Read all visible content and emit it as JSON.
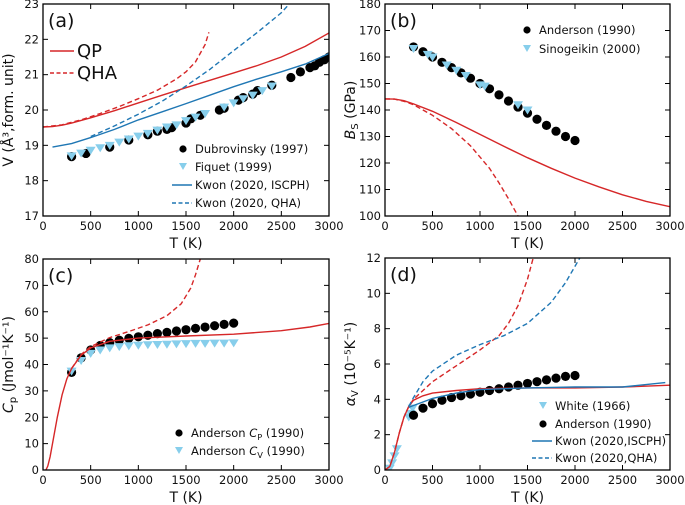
{
  "colors": {
    "qp_red": "#d62728",
    "kwon_blue": "#1f77b4",
    "exp_black": "#000000",
    "exp_lightblue": "#87ceeb"
  },
  "chart_data": [
    {
      "id": "a",
      "type": "line",
      "panel_label": "(a)",
      "title": "",
      "xlabel": "T (K)",
      "ylabel": "V (Å³,form. unit)",
      "xlim": [
        0,
        3000
      ],
      "ylim": [
        17,
        23
      ],
      "xticks": [
        0,
        500,
        1000,
        1500,
        2000,
        2500,
        3000
      ],
      "yticks": [
        17,
        18,
        19,
        20,
        21,
        22,
        23
      ],
      "xtick_labels": [
        "0",
        "500",
        "1000",
        "1500",
        "2000",
        "2500",
        "3000"
      ],
      "ytick_labels": [
        "17",
        "18",
        "19",
        "20",
        "21",
        "22",
        "23"
      ],
      "legend_main": {
        "placement": "top-left",
        "entries": [
          "QP",
          "QHA"
        ]
      },
      "legend": {
        "placement": "bottom-right",
        "entries": [
          "Dubrovinsky (1997)",
          "Fiquet (1999)",
          "Kwon (2020, ISCPH)",
          "Kwon (2020, QHA)"
        ]
      },
      "series": [
        {
          "name": "QP",
          "style": "solid",
          "color": "qp_red",
          "x": [
            0,
            100,
            200,
            300,
            500,
            750,
            1000,
            1250,
            1500,
            1750,
            2000,
            2250,
            2500,
            2750,
            3000
          ],
          "y": [
            19.52,
            19.53,
            19.57,
            19.63,
            19.78,
            19.98,
            20.2,
            20.42,
            20.63,
            20.84,
            21.05,
            21.26,
            21.5,
            21.8,
            22.18
          ]
        },
        {
          "name": "QHA",
          "style": "dashed",
          "color": "qp_red",
          "x": [
            0,
            200,
            400,
            600,
            800,
            1000,
            1200,
            1400,
            1500,
            1600,
            1700,
            1740
          ],
          "y": [
            19.52,
            19.58,
            19.72,
            19.9,
            20.1,
            20.32,
            20.56,
            20.88,
            21.08,
            21.36,
            21.85,
            22.2
          ]
        },
        {
          "name": "Kwon (2020, ISCPH)",
          "style": "solid",
          "color": "kwon_blue",
          "x": [
            100,
            300,
            500,
            750,
            1000,
            1250,
            1500,
            1750,
            2000,
            2250,
            2500,
            2750,
            3000
          ],
          "y": [
            18.95,
            19.05,
            19.22,
            19.45,
            19.72,
            19.95,
            20.18,
            20.42,
            20.66,
            20.88,
            21.08,
            21.3,
            21.6
          ]
        },
        {
          "name": "Kwon (2020, QHA)",
          "style": "dashed",
          "color": "kwon_blue",
          "x": [
            500,
            750,
            1000,
            1250,
            1500,
            1750,
            2000,
            2250,
            2500,
            2750,
            2800
          ],
          "y": [
            19.25,
            19.55,
            19.88,
            20.25,
            20.68,
            21.15,
            21.68,
            22.2,
            22.75,
            23.5,
            23.7
          ]
        },
        {
          "name": "Dubrovinsky (1997)",
          "style": "marker-circle",
          "color": "exp_black",
          "x": [
            300,
            450,
            700,
            900,
            1100,
            1200,
            1300,
            1350,
            1500,
            1550,
            1650,
            1850,
            1900,
            2050,
            2100,
            2200,
            2250,
            2400,
            2600,
            2700,
            2800,
            2850,
            2900,
            2950,
            3000
          ],
          "y": [
            18.68,
            18.77,
            18.95,
            19.15,
            19.3,
            19.4,
            19.45,
            19.5,
            19.63,
            19.75,
            19.85,
            20.0,
            20.05,
            20.28,
            20.35,
            20.45,
            20.55,
            20.7,
            20.92,
            21.08,
            21.2,
            21.25,
            21.35,
            21.42,
            21.5
          ]
        },
        {
          "name": "Fiquet (1999)",
          "style": "marker-triangle",
          "color": "exp_lightblue",
          "x": [
            300,
            400,
            500,
            600,
            700,
            800,
            900,
            1000,
            1100,
            1200,
            1300,
            1400,
            1500,
            1600,
            1700,
            1900,
            2000,
            2100,
            2200,
            2300,
            2400
          ],
          "y": [
            18.7,
            18.78,
            18.86,
            18.93,
            19.0,
            19.09,
            19.18,
            19.26,
            19.34,
            19.43,
            19.52,
            19.58,
            19.7,
            19.8,
            19.9,
            20.08,
            20.2,
            20.32,
            20.42,
            20.55,
            20.68
          ]
        }
      ]
    },
    {
      "id": "b",
      "type": "line",
      "panel_label": "(b)",
      "title": "",
      "xlabel": "T (K)",
      "ylabel": "B_S (GPa)",
      "xlim": [
        0,
        3000
      ],
      "ylim": [
        100,
        180
      ],
      "xticks": [
        0,
        500,
        1000,
        1500,
        2000,
        2500,
        3000
      ],
      "yticks": [
        100,
        110,
        120,
        130,
        140,
        150,
        160,
        170,
        180
      ],
      "xtick_labels": [
        "0",
        "500",
        "1000",
        "1500",
        "2000",
        "2500",
        "3000"
      ],
      "ytick_labels": [
        "100",
        "110",
        "120",
        "130",
        "140",
        "150",
        "160",
        "170",
        "180"
      ],
      "legend": {
        "placement": "top-right",
        "entries": [
          "Anderson (1990)",
          "Sinogeikin (2000)"
        ]
      },
      "series": [
        {
          "name": "QP",
          "style": "solid",
          "color": "qp_red",
          "x": [
            0,
            100,
            200,
            300,
            500,
            750,
            1000,
            1250,
            1500,
            1750,
            2000,
            2250,
            2500,
            2750,
            3000
          ],
          "y": [
            144.2,
            144.1,
            143.5,
            142.3,
            139.5,
            135.3,
            130.8,
            126.3,
            122.0,
            118.0,
            114.3,
            111.0,
            108.0,
            105.5,
            103.5
          ]
        },
        {
          "name": "QHA",
          "style": "dashed",
          "color": "qp_red",
          "x": [
            0,
            100,
            200,
            300,
            500,
            700,
            900,
            1100,
            1200,
            1300,
            1400
          ],
          "y": [
            144.2,
            144.1,
            143.3,
            142.0,
            138.0,
            133.0,
            126.5,
            118.0,
            112.5,
            106.5,
            100
          ]
        },
        {
          "name": "Anderson (1990)",
          "style": "marker-circle",
          "color": "exp_black",
          "x": [
            300,
            400,
            500,
            600,
            700,
            800,
            900,
            1000,
            1100,
            1200,
            1300,
            1400,
            1500,
            1600,
            1700,
            1800,
            1900,
            2000
          ],
          "y": [
            163.8,
            162.0,
            160.0,
            158.0,
            156.0,
            154.0,
            152.0,
            150.0,
            148.0,
            145.7,
            143.4,
            141.1,
            138.8,
            136.5,
            134.2,
            132.0,
            130.0,
            128.5
          ]
        },
        {
          "name": "Sinogeikin (2000)",
          "style": "marker-triangle",
          "color": "exp_lightblue",
          "x": [
            300,
            450,
            500,
            650,
            750,
            850,
            1000,
            1050,
            1400,
            1500
          ],
          "y": [
            163.2,
            161.0,
            160.0,
            157.0,
            155.0,
            153.0,
            149.5,
            149.0,
            142.0,
            140.0
          ]
        }
      ]
    },
    {
      "id": "c",
      "type": "line",
      "panel_label": "(c)",
      "title": "",
      "xlabel": "T (K)",
      "ylabel": "C_p (Jmol⁻¹K⁻¹)",
      "xlim": [
        0,
        3000
      ],
      "ylim": [
        0,
        80
      ],
      "xticks": [
        0,
        500,
        1000,
        1500,
        2000,
        2500,
        3000
      ],
      "yticks": [
        0,
        10,
        20,
        30,
        40,
        50,
        60,
        70,
        80
      ],
      "xtick_labels": [
        "0",
        "500",
        "1000",
        "1500",
        "2000",
        "2500",
        "3000"
      ],
      "ytick_labels": [
        "0",
        "10",
        "20",
        "30",
        "40",
        "50",
        "60",
        "70",
        "80"
      ],
      "legend": {
        "placement": "bottom-right",
        "entries": [
          "Anderson C_P (1990)",
          "Anderson C_V (1990)"
        ]
      },
      "series": [
        {
          "name": "QP",
          "style": "solid",
          "color": "qp_red",
          "x": [
            30,
            50,
            75,
            100,
            150,
            200,
            250,
            300,
            400,
            500,
            700,
            1000,
            1500,
            2000,
            2500,
            2800,
            3000
          ],
          "y": [
            0,
            1.5,
            5,
            10,
            20,
            28.5,
            34.5,
            38.5,
            43.5,
            46.3,
            48.8,
            50.0,
            50.8,
            51.5,
            52.8,
            54.2,
            55.6
          ]
        },
        {
          "name": "QHA",
          "style": "dashed",
          "color": "qp_red",
          "x": [
            300,
            400,
            500,
            700,
            900,
            1100,
            1300,
            1450,
            1550,
            1600,
            1650
          ],
          "y": [
            38.5,
            43.8,
            46.8,
            50.2,
            52.5,
            55.0,
            58.5,
            63.0,
            69.0,
            74.0,
            80.0
          ]
        },
        {
          "name": "Anderson C_P (1990)",
          "style": "marker-circle",
          "color": "exp_black",
          "x": [
            300,
            400,
            500,
            600,
            700,
            800,
            900,
            1000,
            1100,
            1200,
            1300,
            1400,
            1500,
            1600,
            1700,
            1800,
            1900,
            2000
          ],
          "y": [
            37.0,
            42.5,
            45.5,
            47.2,
            48.3,
            49.2,
            49.9,
            50.5,
            51.1,
            51.7,
            52.2,
            52.7,
            53.2,
            53.7,
            54.2,
            54.7,
            55.2,
            55.7
          ]
        },
        {
          "name": "Anderson C_V (1990)",
          "style": "marker-triangle",
          "color": "exp_lightblue",
          "x": [
            300,
            400,
            500,
            600,
            700,
            800,
            900,
            1000,
            1100,
            1200,
            1300,
            1400,
            1500,
            1600,
            1700,
            1800,
            1900,
            2000
          ],
          "y": [
            37.5,
            41.5,
            44.2,
            45.5,
            46.3,
            46.8,
            47.1,
            47.3,
            47.5,
            47.6,
            47.7,
            47.8,
            47.9,
            48.0,
            48.0,
            48.1,
            48.1,
            48.2
          ]
        }
      ]
    },
    {
      "id": "d",
      "type": "line",
      "panel_label": "(d)",
      "title": "",
      "xlabel": "T (K)",
      "ylabel": "α_V (10⁻⁵K⁻¹)",
      "xlim": [
        0,
        3000
      ],
      "ylim": [
        0,
        12
      ],
      "xticks": [
        0,
        500,
        1000,
        1500,
        2000,
        2500,
        3000
      ],
      "yticks": [
        0,
        2,
        4,
        6,
        8,
        10,
        12
      ],
      "xtick_labels": [
        "0",
        "500",
        "1000",
        "1500",
        "2000",
        "2500",
        "3000"
      ],
      "ytick_labels": [
        "0",
        "2",
        "4",
        "6",
        "8",
        "10",
        "12"
      ],
      "legend": {
        "placement": "bottom-right",
        "entries": [
          "White (1966)",
          "Anderson (1990)",
          "Kwon (2020,ISCPH)",
          "Kwon (2020,QHA)"
        ]
      },
      "series": [
        {
          "name": "QP",
          "style": "solid",
          "color": "qp_red",
          "x": [
            0,
            50,
            100,
            150,
            200,
            250,
            300,
            400,
            500,
            750,
            1000,
            1500,
            2000,
            2500,
            3000
          ],
          "y": [
            0,
            0.2,
            1.0,
            2.1,
            3.0,
            3.6,
            3.95,
            4.2,
            4.35,
            4.5,
            4.6,
            4.65,
            4.65,
            4.7,
            4.8
          ]
        },
        {
          "name": "QHA",
          "style": "dashed",
          "color": "qp_red",
          "x": [
            0,
            50,
            100,
            150,
            200,
            250,
            300,
            500,
            750,
            1000,
            1200,
            1300,
            1400,
            1500,
            1560
          ],
          "y": [
            0,
            0.2,
            1.0,
            2.1,
            3.0,
            3.6,
            4.0,
            5.0,
            5.9,
            6.8,
            7.6,
            8.3,
            9.3,
            10.8,
            12.0
          ]
        },
        {
          "name": "Kwon (2020,ISCPH)",
          "style": "solid",
          "color": "kwon_blue",
          "x": [
            250,
            300,
            400,
            500,
            750,
            1000,
            1500,
            2000,
            2500,
            2950
          ],
          "y": [
            3.55,
            3.65,
            3.85,
            4.05,
            4.35,
            4.55,
            4.65,
            4.7,
            4.7,
            4.95
          ]
        },
        {
          "name": "Kwon (2020,QHA)",
          "style": "dashed",
          "color": "kwon_blue",
          "x": [
            250,
            300,
            400,
            500,
            750,
            1000,
            1250,
            1500,
            1750,
            1900,
            2050
          ],
          "y": [
            3.6,
            4.1,
            5.0,
            5.6,
            6.5,
            7.1,
            7.6,
            8.3,
            9.5,
            10.6,
            12.0
          ]
        },
        {
          "name": "White (1966)",
          "style": "marker-triangle",
          "color": "exp_lightblue",
          "x": [
            50,
            75,
            100,
            125,
            250,
            270,
            290
          ],
          "y": [
            0.1,
            0.4,
            0.8,
            1.2,
            3.0,
            3.2,
            3.5
          ]
        },
        {
          "name": "Anderson (1990)",
          "style": "marker-circle",
          "color": "exp_black",
          "x": [
            300,
            400,
            500,
            600,
            700,
            800,
            900,
            1000,
            1100,
            1200,
            1300,
            1400,
            1500,
            1600,
            1700,
            1800,
            1900,
            2000
          ],
          "y": [
            3.1,
            3.5,
            3.75,
            3.95,
            4.1,
            4.2,
            4.3,
            4.4,
            4.5,
            4.6,
            4.7,
            4.8,
            4.9,
            5.0,
            5.1,
            5.2,
            5.3,
            5.35
          ]
        }
      ]
    }
  ]
}
